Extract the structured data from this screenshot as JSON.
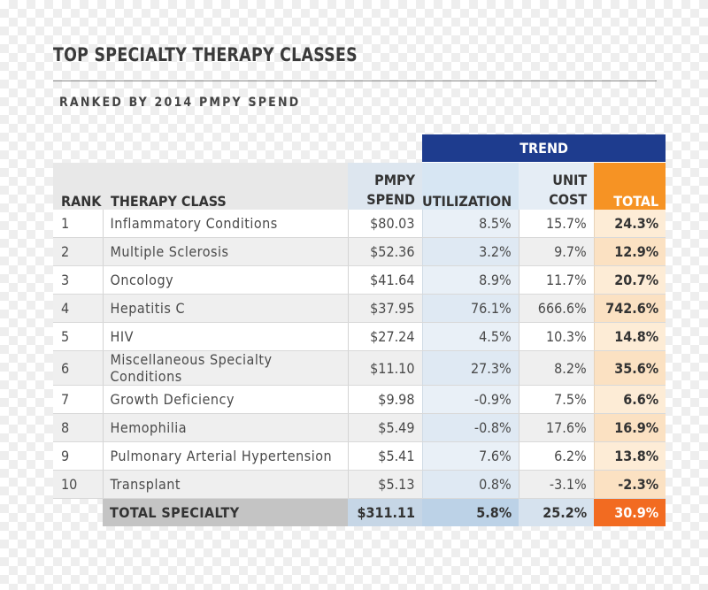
{
  "title": "TOP SPECIALTY THERAPY CLASSES",
  "subtitle": "RANKED BY 2014 PMPY SPEND",
  "table": {
    "trend_label": "TREND",
    "headers": {
      "rank": "RANK",
      "therapy_class": "THERAPY CLASS",
      "pmpy_line1": "PMPY",
      "pmpy_line2": "SPEND",
      "utilization": "UTILIZATION",
      "unit_cost_line1": "UNIT",
      "unit_cost_line2": "COST",
      "total": "TOTAL"
    },
    "rows": [
      {
        "rank": "1",
        "therapy_class": "Inflammatory Conditions",
        "pmpy": "$80.03",
        "utilization": "8.5%",
        "unit_cost": "15.7%",
        "total": "24.3%"
      },
      {
        "rank": "2",
        "therapy_class": "Multiple Sclerosis",
        "pmpy": "$52.36",
        "utilization": "3.2%",
        "unit_cost": "9.7%",
        "total": "12.9%"
      },
      {
        "rank": "3",
        "therapy_class": "Oncology",
        "pmpy": "$41.64",
        "utilization": "8.9%",
        "unit_cost": "11.7%",
        "total": "20.7%"
      },
      {
        "rank": "4",
        "therapy_class": "Hepatitis C",
        "pmpy": "$37.95",
        "utilization": "76.1%",
        "unit_cost": "666.6%",
        "total": "742.6%"
      },
      {
        "rank": "5",
        "therapy_class": "HIV",
        "pmpy": "$27.24",
        "utilization": "4.5%",
        "unit_cost": "10.3%",
        "total": "14.8%"
      },
      {
        "rank": "6",
        "therapy_class": "Miscellaneous Specialty Conditions",
        "pmpy": "$11.10",
        "utilization": "27.3%",
        "unit_cost": "8.2%",
        "total": "35.6%"
      },
      {
        "rank": "7",
        "therapy_class": "Growth Deficiency",
        "pmpy": "$9.98",
        "utilization": "-0.9%",
        "unit_cost": "7.5%",
        "total": "6.6%"
      },
      {
        "rank": "8",
        "therapy_class": "Hemophilia",
        "pmpy": "$5.49",
        "utilization": "-0.8%",
        "unit_cost": "17.6%",
        "total": "16.9%"
      },
      {
        "rank": "9",
        "therapy_class": "Pulmonary Arterial Hypertension",
        "pmpy": "$5.41",
        "utilization": "7.6%",
        "unit_cost": "6.2%",
        "total": "13.8%"
      },
      {
        "rank": "10",
        "therapy_class": "Transplant",
        "pmpy": "$5.13",
        "utilization": "0.8%",
        "unit_cost": "-3.1%",
        "total": "-2.3%"
      }
    ],
    "total_row": {
      "label": "TOTAL SPECIALTY",
      "pmpy": "$311.11",
      "utilization": "5.8%",
      "unit_cost": "25.2%",
      "total": "30.9%"
    }
  },
  "colors": {
    "trend_header": "#1e3c8e",
    "total_header": "#f69324",
    "total_highlight": "#f26b21",
    "utilization_tint": "#e9f0f7",
    "total_tint": "#fdecd6"
  }
}
